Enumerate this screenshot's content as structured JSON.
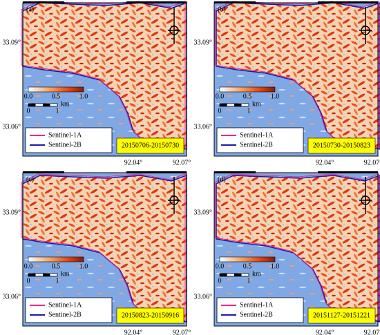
{
  "panels": [
    {
      "label": "(a)",
      "dates": "20150706-20150730"
    },
    {
      "label": "(b)",
      "dates": "20150730-20150823"
    },
    {
      "label": "(c)",
      "dates": "20150823-20150916"
    },
    {
      "label": "(d)",
      "dates": "20151127-20151221"
    }
  ],
  "lat_labels": [
    "33.09°",
    "33.06°"
  ],
  "lon_labels": [
    "92.04°",
    "92.07°"
  ],
  "colorbar_ticks": [
    "0.0",
    "0.5",
    "1.0"
  ],
  "scale_labels": [
    "0",
    "1",
    "km"
  ],
  "legend": [
    "Sentinel-1A",
    "Sentinel-2B"
  ]
}
